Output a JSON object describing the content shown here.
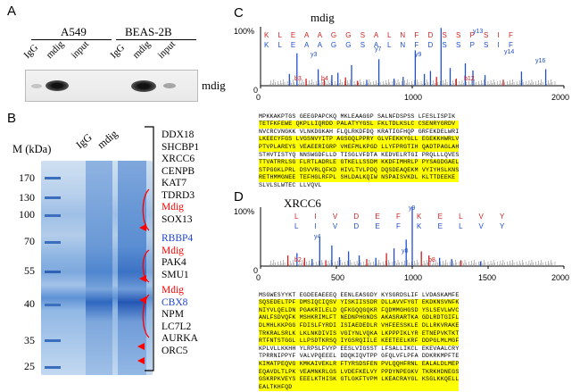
{
  "panels": {
    "A": {
      "label": "A",
      "cell_lines": [
        "A549",
        "BEAS-2B"
      ],
      "lanes": [
        "IgG",
        "mdig",
        "input",
        "IgG",
        "mdig",
        "input"
      ],
      "band_label": "mdig"
    },
    "B": {
      "label": "B",
      "marker_axis_label": "M (kDa)",
      "lanes": [
        "IgG",
        "mdig"
      ],
      "markers": [
        "170",
        "130",
        "100",
        "70",
        "55",
        "40",
        "35",
        "25"
      ],
      "proteins": [
        {
          "name": "DDX18",
          "color": "black"
        },
        {
          "name": "SHCBP1",
          "color": "black"
        },
        {
          "name": "XRCC6",
          "color": "black"
        },
        {
          "name": "CENPB",
          "color": "black"
        },
        {
          "name": "KAT7",
          "color": "black"
        },
        {
          "name": "TDRD3",
          "color": "black"
        },
        {
          "name": "Mdig",
          "color": "red"
        },
        {
          "name": "SOX13",
          "color": "black"
        },
        {
          "name": "RBBP4",
          "color": "blue"
        },
        {
          "name": "Mdig",
          "color": "red"
        },
        {
          "name": "PAK4",
          "color": "black"
        },
        {
          "name": "SMU1",
          "color": "black"
        },
        {
          "name": "Mdig",
          "color": "red"
        },
        {
          "name": "CBX8",
          "color": "blue"
        },
        {
          "name": "NPM",
          "color": "black"
        },
        {
          "name": "LC7L2",
          "color": "black"
        },
        {
          "name": "AURKA",
          "color": "black"
        },
        {
          "name": "ORC5",
          "color": "black"
        }
      ]
    },
    "C": {
      "label": "C",
      "title": "mdig",
      "y_top_label": "100%",
      "y_zero_label": "0",
      "x_ticks": [
        "0",
        "1000",
        "2000"
      ],
      "sequence_top": "K L E A A G G S A L N F D S S P S I F",
      "sequence_bottom": "K L E A A G G S A L N F D S S P S I F",
      "ion_labels": [
        "y3",
        "y5",
        "y7",
        "y9",
        "y10",
        "y11",
        "y12",
        "y13",
        "y14",
        "y15",
        "y16",
        "y17",
        "b3",
        "b4",
        "b5",
        "b6",
        "b7",
        "b12",
        "b13",
        "b16",
        "b17"
      ],
      "protein_sequence": [
        "MPKKAKPTGS GEEGPAPCKQ MKLEAAGGP SALNFDSPSS LFESLISPIK",
        "TETFKFEWE QKPLLIQRDD PALATYYGSL FKLTDLKSLC CSENRYGRDV",
        "NVCRCVNGKK VLNKDGKAH FLQLRKDFDQ KRATIGFHQP GRFEKDELWRI",
        "LKEECYFGS LVGSNVYITP AGSGQLPPRY GLVFEKKYGLL EGEKKHWRLV",
        "PTVPLAREYS VEAEERIGRP VHEFMLKPGD LLYFPRGTIH QADTPAGLAH",
        "STHVTISTYQ NNSWGDFLLD TISGLVFDTA KEDVELRTGI PRQLLLQVES",
        "TTVATRRLSG FLRTLADRLE GTKELLSSDM KKDFIMHRLP PYSAGDGAEL",
        "STPGGKLPRL DSVVRLQFKD HIVLTVLPDQ DQSDEAQEKM VYIYHSLKNS",
        "RETHMMGNEE TEFHGLRFPL SHLDALKQIW NSPAISVKDL KLTTDEEKE",
        "SLVLSLWTEC LLVQVL"
      ],
      "chart_data": {
        "type": "bar",
        "x_label_ticks": [
          0,
          1000,
          2000
        ],
        "xlim": [
          0,
          2000
        ],
        "ylim": [
          0,
          100
        ],
        "peaks": [
          {
            "mz": 190,
            "rel": 20,
            "color": "#1f4fd0"
          },
          {
            "mz": 240,
            "rel": 55,
            "color": "#1f4fd0"
          },
          {
            "mz": 300,
            "rel": 12,
            "color": "#d01f1f"
          },
          {
            "mz": 380,
            "rel": 28,
            "color": "#1f4fd0"
          },
          {
            "mz": 420,
            "rel": 10,
            "color": "#d01f1f"
          },
          {
            "mz": 470,
            "rel": 18,
            "color": "#1f4fd0"
          },
          {
            "mz": 510,
            "rel": 22,
            "color": "#1f4fd0"
          },
          {
            "mz": 560,
            "rel": 14,
            "color": "#d01f1f"
          },
          {
            "mz": 600,
            "rel": 35,
            "color": "#1f4fd0"
          },
          {
            "mz": 640,
            "rel": 8,
            "color": "#d01f1f"
          },
          {
            "mz": 700,
            "rel": 10,
            "color": "#1f4fd0"
          },
          {
            "mz": 780,
            "rel": 45,
            "color": "#1f4fd0"
          },
          {
            "mz": 880,
            "rel": 12,
            "color": "#1f4fd0"
          },
          {
            "mz": 940,
            "rel": 15,
            "color": "#1f4fd0"
          },
          {
            "mz": 1020,
            "rel": 60,
            "color": "#1f4fd0"
          },
          {
            "mz": 1080,
            "rel": 20,
            "color": "#1f4fd0"
          },
          {
            "mz": 1120,
            "rel": 25,
            "color": "#1f4fd0"
          },
          {
            "mz": 1160,
            "rel": 15,
            "color": "#d01f1f"
          },
          {
            "mz": 1190,
            "rel": 98,
            "color": "#1f4fd0"
          },
          {
            "mz": 1250,
            "rel": 30,
            "color": "#1f4fd0"
          },
          {
            "mz": 1290,
            "rel": 12,
            "color": "#d01f1f"
          },
          {
            "mz": 1350,
            "rel": 38,
            "color": "#1f4fd0"
          },
          {
            "mz": 1400,
            "rel": 26,
            "color": "#1f4fd0"
          },
          {
            "mz": 1480,
            "rel": 18,
            "color": "#1f4fd0"
          },
          {
            "mz": 1600,
            "rel": 10,
            "color": "#d01f1f"
          },
          {
            "mz": 1720,
            "rel": 24,
            "color": "#1f4fd0"
          },
          {
            "mz": 1880,
            "rel": 28,
            "color": "#1f4fd0"
          }
        ]
      }
    },
    "D": {
      "label": "D",
      "title": "XRCC6",
      "y_top_label": "100%",
      "y_zero_label": "0",
      "x_ticks": [
        "0",
        "500",
        "1000",
        "1500",
        "2000"
      ],
      "sequence_top": "L I V D E F K E L V Y",
      "sequence_bottom": "L I V D E F K E L V Y",
      "ion_labels": [
        "y9",
        "y4",
        "y5",
        "y6",
        "y7",
        "y8",
        "y10",
        "y11",
        "y12",
        "y13",
        "b2",
        "b3",
        "b4",
        "b7",
        "b8",
        "b9",
        "b10",
        "b11",
        "b12",
        "b13"
      ],
      "protein_sequence": [
        "MSGWESYYKT EGDEEAEEEQ EENLEASGDY KYSGRDSLIF LVDASKAMFE",
        "SQSEDELTPF DMSIQCIQSV YISKIISSDR DLLAVVFYGT EKDKNSVNFK",
        "NIYVLQELDN PGAKRILELD QFKGQQGQKR FQDMMGHGSD YSLSEVLWVC",
        "ANLFSDVQFK MSHKRIMLFT NEDNPHGNDS AKASRARTKA GDLRDTGIFL",
        "DLMHLKKPGG FDISLFYRDI ISIAEDEDLR VHFEESSKLE DLLRKVRAKE",
        "TRKRALSRLK LKLNKDIVIS VGIYNLVQKA LKPPPIKLYR ETNEPVKTKT",
        "RTFNTSTGGL LLPSDTKRSQ IYGSRQIILE KEETEELKRF DDPGLMLMGF",
        "KPLVLLKKHH YLRPSLFVYP EESLVIGSST LFSALLIKCL EKEVAALCRY",
        "TPRRNIPPYF VALVPQEEEL DDQKIQVTPP GFQLVFLPFA DDKRKMPFTE",
        "KIMATPEQVG KMKAIVEKLR FTYRSDSFEN PVLQQHFRNL EALALDLMEP",
        "EQAVDLTLPK VEAMNKRLGS LVDEFKELVY PPDYNPEGKV TKRKHDNEGS",
        "GSKRPKVEYS EEELKTHISK GTLGKFTVPM LKEACRAYGL KSGLKKQELL",
        "EALTKHFQD"
      ],
      "chart_data": {
        "type": "bar",
        "x_label_ticks": [
          0,
          500,
          1000,
          1500,
          2000
        ],
        "xlim": [
          0,
          2000
        ],
        "ylim": [
          0,
          100
        ],
        "peaks": [
          {
            "mz": 180,
            "rel": 18,
            "color": "#d01f1f"
          },
          {
            "mz": 240,
            "rel": 22,
            "color": "#1f4fd0"
          },
          {
            "mz": 290,
            "rel": 14,
            "color": "#d01f1f"
          },
          {
            "mz": 340,
            "rel": 12,
            "color": "#1f4fd0"
          },
          {
            "mz": 390,
            "rel": 50,
            "color": "#1f4fd0"
          },
          {
            "mz": 430,
            "rel": 10,
            "color": "#d01f1f"
          },
          {
            "mz": 470,
            "rel": 35,
            "color": "#1f4fd0"
          },
          {
            "mz": 520,
            "rel": 15,
            "color": "#1f4fd0"
          },
          {
            "mz": 580,
            "rel": 25,
            "color": "#1f4fd0"
          },
          {
            "mz": 650,
            "rel": 18,
            "color": "#1f4fd0"
          },
          {
            "mz": 700,
            "rel": 12,
            "color": "#d01f1f"
          },
          {
            "mz": 760,
            "rel": 14,
            "color": "#1f4fd0"
          },
          {
            "mz": 830,
            "rel": 22,
            "color": "#d01f1f"
          },
          {
            "mz": 880,
            "rel": 30,
            "color": "#1f4fd0"
          },
          {
            "mz": 960,
            "rel": 45,
            "color": "#1f4fd0"
          },
          {
            "mz": 1000,
            "rel": 100,
            "color": "#1f4fd0"
          },
          {
            "mz": 1060,
            "rel": 25,
            "color": "#d01f1f"
          },
          {
            "mz": 1110,
            "rel": 18,
            "color": "#d01f1f"
          },
          {
            "mz": 1180,
            "rel": 14,
            "color": "#1f4fd0"
          },
          {
            "mz": 1260,
            "rel": 12,
            "color": "#1f4fd0"
          },
          {
            "mz": 1320,
            "rel": 10,
            "color": "#d01f1f"
          },
          {
            "mz": 1450,
            "rel": 8,
            "color": "#1f4fd0"
          }
        ]
      }
    }
  }
}
